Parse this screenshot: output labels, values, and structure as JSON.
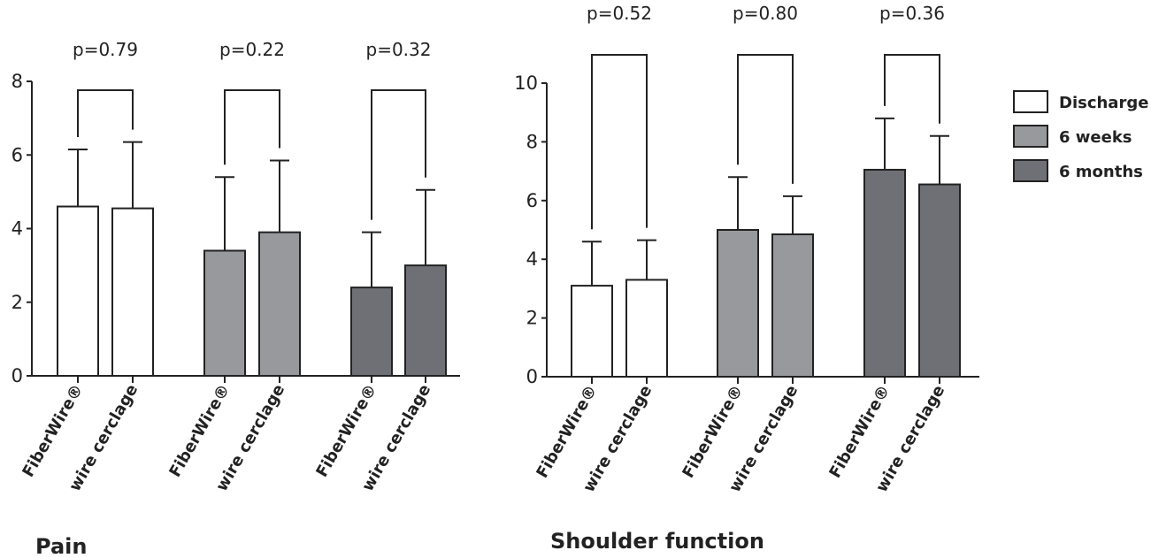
{
  "colors": {
    "Discharge": "#ffffff",
    "6 weeks": "#98999d",
    "6 months": "#6f7075",
    "stroke": "#222222"
  },
  "legend": {
    "placement": "right",
    "items": [
      {
        "label": "Discharge",
        "color": "#ffffff"
      },
      {
        "label": "6 weeks",
        "color": "#98999d"
      },
      {
        "label": "6 months",
        "color": "#6f7075"
      }
    ]
  },
  "chart_data": [
    {
      "type": "bar",
      "title": "Pain",
      "ylim": [
        0,
        8
      ],
      "yticks": [
        "0",
        "2",
        "4",
        "6",
        "8"
      ],
      "categories": [
        "FiberWire®",
        "wire cerclage"
      ],
      "series": [
        {
          "name": "Discharge",
          "values": [
            4.6,
            4.55
          ],
          "errors": [
            1.55,
            1.8
          ]
        },
        {
          "name": "6 weeks",
          "values": [
            3.4,
            3.9
          ],
          "errors": [
            2.0,
            1.95
          ]
        },
        {
          "name": "6 months",
          "values": [
            2.4,
            3.0
          ],
          "errors": [
            1.5,
            2.05
          ]
        }
      ],
      "pvalues": [
        "p=0.79",
        "p=0.22",
        "p=0.32"
      ]
    },
    {
      "type": "bar",
      "title": "Shoulder function",
      "ylim": [
        0,
        10
      ],
      "yticks": [
        "0",
        "2",
        "4",
        "6",
        "8",
        "10"
      ],
      "categories": [
        "FiberWire®",
        "wire cerclage"
      ],
      "series": [
        {
          "name": "Discharge",
          "values": [
            3.1,
            3.3
          ],
          "errors": [
            1.5,
            1.35
          ]
        },
        {
          "name": "6 weeks",
          "values": [
            5.0,
            4.85
          ],
          "errors": [
            1.8,
            1.3
          ]
        },
        {
          "name": "6 months",
          "values": [
            7.05,
            6.55
          ],
          "errors": [
            1.75,
            1.65
          ]
        }
      ],
      "pvalues": [
        "p=0.52",
        "p=0.80",
        "p=0.36"
      ]
    }
  ]
}
